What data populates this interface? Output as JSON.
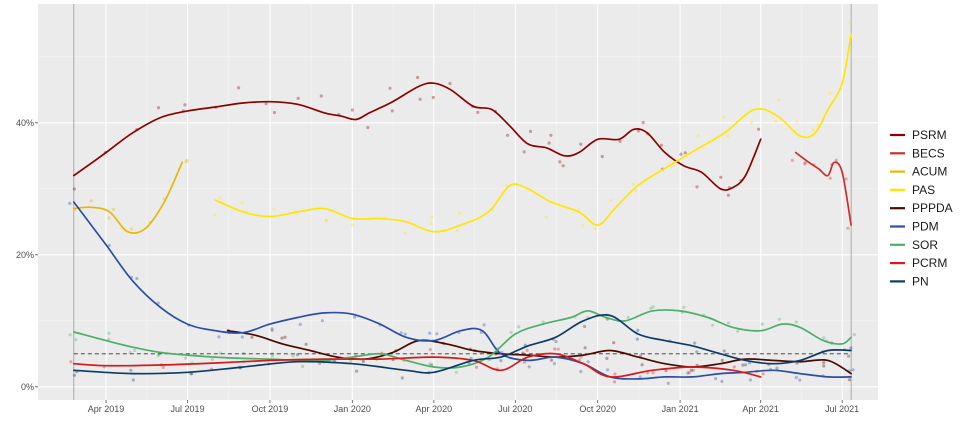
{
  "chart_data": {
    "type": "line",
    "title": "",
    "xlabel": "",
    "ylabel": "",
    "ylim": [
      -2,
      58
    ],
    "x_range": [
      "2019-01-15",
      "2021-08-10"
    ],
    "y_ticks": [
      {
        "value": 0,
        "label": "0%"
      },
      {
        "value": 20,
        "label": "20%"
      },
      {
        "value": 40,
        "label": "40%"
      }
    ],
    "x_ticks": [
      {
        "date": "2019-04-01",
        "label": "Apr 2019"
      },
      {
        "date": "2019-07-01",
        "label": "Jul 2019"
      },
      {
        "date": "2019-10-01",
        "label": "Oct 2019"
      },
      {
        "date": "2020-01-01",
        "label": "Jan 2020"
      },
      {
        "date": "2020-04-01",
        "label": "Apr 2020"
      },
      {
        "date": "2020-07-01",
        "label": "Jul 2020"
      },
      {
        "date": "2020-10-01",
        "label": "Oct 2020"
      },
      {
        "date": "2021-01-01",
        "label": "Jan 2021"
      },
      {
        "date": "2021-04-01",
        "label": "Apr 2021"
      },
      {
        "date": "2021-07-01",
        "label": "Jul 2021"
      }
    ],
    "election_markers": [
      "2019-02-24",
      "2021-07-11"
    ],
    "threshold": 5,
    "legend_position": "right",
    "series": [
      {
        "name": "PSRM",
        "color": "#8b0000",
        "segments": [
          [
            [
              "2019-02-24",
              32
            ],
            [
              "2019-04-01",
              35.5
            ],
            [
              "2019-05-01",
              38.5
            ],
            [
              "2019-06-01",
              40.8
            ],
            [
              "2019-07-01",
              41.8
            ],
            [
              "2019-08-01",
              42.4
            ],
            [
              "2019-09-01",
              43
            ],
            [
              "2019-10-01",
              43.2
            ],
            [
              "2019-11-01",
              42.8
            ],
            [
              "2019-12-01",
              41.5
            ],
            [
              "2019-12-20",
              41
            ],
            [
              "2020-01-05",
              40.5
            ],
            [
              "2020-01-20",
              41.5
            ],
            [
              "2020-02-15",
              43.2
            ],
            [
              "2020-03-15",
              45.5
            ],
            [
              "2020-04-01",
              46
            ],
            [
              "2020-04-20",
              45
            ],
            [
              "2020-05-15",
              42.5
            ],
            [
              "2020-06-05",
              42
            ],
            [
              "2020-06-25",
              39.5
            ],
            [
              "2020-07-15",
              36.8
            ],
            [
              "2020-08-05",
              36.2
            ],
            [
              "2020-08-25",
              35
            ],
            [
              "2020-09-10",
              35.5
            ],
            [
              "2020-10-01",
              37.5
            ],
            [
              "2020-10-25",
              37.5
            ],
            [
              "2020-11-10",
              39
            ],
            [
              "2020-11-25",
              38.5
            ],
            [
              "2020-12-15",
              35.5
            ],
            [
              "2021-01-05",
              33.5
            ],
            [
              "2021-01-25",
              32.5
            ],
            [
              "2021-02-15",
              30
            ],
            [
              "2021-03-01",
              30.2
            ],
            [
              "2021-03-15",
              32
            ],
            [
              "2021-04-01",
              37.5
            ]
          ]
        ]
      },
      {
        "name": "BECS",
        "color": "#cc2d2d",
        "segments": [
          [
            [
              "2021-05-10",
              35.5
            ],
            [
              "2021-05-25",
              34
            ],
            [
              "2021-06-05",
              33
            ],
            [
              "2021-06-15",
              32
            ],
            [
              "2021-06-22",
              34
            ],
            [
              "2021-07-01",
              32.5
            ],
            [
              "2021-07-11",
              24.5
            ]
          ]
        ]
      },
      {
        "name": "ACUM",
        "color": "#e6b800",
        "segments": [
          [
            [
              "2019-02-24",
              27
            ],
            [
              "2019-03-15",
              27.2
            ],
            [
              "2019-04-05",
              26.5
            ],
            [
              "2019-04-25",
              23.5
            ],
            [
              "2019-05-15",
              24
            ],
            [
              "2019-06-05",
              28
            ],
            [
              "2019-06-25",
              34
            ]
          ]
        ]
      },
      {
        "name": "PAS",
        "color": "#ffe600",
        "segments": [
          [
            [
              "2019-08-01",
              28.3
            ],
            [
              "2019-09-01",
              26.5
            ],
            [
              "2019-10-01",
              25.8
            ],
            [
              "2019-11-01",
              26.5
            ],
            [
              "2019-12-01",
              27
            ],
            [
              "2020-01-01",
              25.5
            ],
            [
              "2020-02-01",
              25.5
            ],
            [
              "2020-03-01",
              25
            ],
            [
              "2020-04-01",
              23.5
            ],
            [
              "2020-05-01",
              24.5
            ],
            [
              "2020-06-01",
              26.5
            ],
            [
              "2020-06-25",
              30.5
            ],
            [
              "2020-07-15",
              30
            ],
            [
              "2020-08-10",
              28
            ],
            [
              "2020-09-10",
              26.5
            ],
            [
              "2020-10-01",
              24.5
            ],
            [
              "2020-10-20",
              27
            ],
            [
              "2020-11-15",
              30.5
            ],
            [
              "2020-12-20",
              33.5
            ],
            [
              "2021-01-20",
              36
            ],
            [
              "2021-02-20",
              38.5
            ],
            [
              "2021-03-25",
              42
            ],
            [
              "2021-04-20",
              41
            ],
            [
              "2021-05-15",
              38
            ],
            [
              "2021-06-01",
              38.5
            ],
            [
              "2021-06-15",
              42
            ],
            [
              "2021-07-01",
              46
            ],
            [
              "2021-07-11",
              53.5
            ]
          ]
        ]
      },
      {
        "name": "PPPDA",
        "color": "#4a0a00",
        "segments": [
          [
            [
              "2019-08-15",
              8.5
            ],
            [
              "2019-09-15",
              7.8
            ],
            [
              "2019-10-15",
              6.5
            ],
            [
              "2019-11-15",
              5.5
            ],
            [
              "2019-12-15",
              4.5
            ],
            [
              "2020-01-15",
              4.2
            ],
            [
              "2020-02-15",
              5.2
            ],
            [
              "2020-03-15",
              7
            ],
            [
              "2020-04-15",
              6.5
            ],
            [
              "2020-05-15",
              5.5
            ],
            [
              "2020-06-15",
              5
            ],
            [
              "2020-07-15",
              4.8
            ],
            [
              "2020-08-15",
              4.5
            ],
            [
              "2020-09-15",
              4.8
            ],
            [
              "2020-10-15",
              5.5
            ],
            [
              "2020-11-15",
              4.5
            ],
            [
              "2020-12-15",
              3.5
            ],
            [
              "2021-01-15",
              3
            ],
            [
              "2021-02-15",
              3.5
            ],
            [
              "2021-03-15",
              4.2
            ],
            [
              "2021-04-15",
              4
            ],
            [
              "2021-05-15",
              3.8
            ],
            [
              "2021-06-15",
              4
            ],
            [
              "2021-07-11",
              2
            ]
          ]
        ]
      },
      {
        "name": "PDM",
        "color": "#2c4ea3",
        "segments": [
          [
            [
              "2019-02-24",
              28
            ],
            [
              "2019-04-01",
              21.5
            ],
            [
              "2019-05-01",
              16
            ],
            [
              "2019-06-01",
              12
            ],
            [
              "2019-07-01",
              9.5
            ],
            [
              "2019-08-01",
              8.5
            ],
            [
              "2019-09-01",
              8.2
            ],
            [
              "2019-10-01",
              9.5
            ],
            [
              "2019-11-01",
              10.5
            ],
            [
              "2019-12-01",
              11.2
            ],
            [
              "2020-01-01",
              11
            ],
            [
              "2020-02-01",
              9.5
            ],
            [
              "2020-03-01",
              7.5
            ],
            [
              "2020-04-01",
              7
            ],
            [
              "2020-05-01",
              8.5
            ],
            [
              "2020-05-25",
              8.5
            ],
            [
              "2020-06-15",
              5
            ],
            [
              "2020-07-15",
              4
            ],
            [
              "2020-08-15",
              4.5
            ],
            [
              "2020-09-15",
              3.5
            ],
            [
              "2020-10-15",
              1.5
            ],
            [
              "2020-11-15",
              1.2
            ],
            [
              "2020-12-15",
              1.5
            ],
            [
              "2021-01-15",
              1.5
            ],
            [
              "2021-02-15",
              2
            ],
            [
              "2021-03-15",
              2.2
            ],
            [
              "2021-04-15",
              2.5
            ],
            [
              "2021-05-15",
              2
            ],
            [
              "2021-06-15",
              1.5
            ],
            [
              "2021-07-11",
              1.5
            ]
          ]
        ]
      },
      {
        "name": "SOR",
        "color": "#4caf6a",
        "segments": [
          [
            [
              "2019-02-24",
              8.3
            ],
            [
              "2019-04-01",
              7
            ],
            [
              "2019-05-01",
              6
            ],
            [
              "2019-06-01",
              5.2
            ],
            [
              "2019-07-01",
              4.8
            ],
            [
              "2019-08-01",
              4.5
            ],
            [
              "2019-09-01",
              4.3
            ],
            [
              "2019-10-01",
              4.2
            ],
            [
              "2019-11-01",
              4
            ],
            [
              "2019-12-01",
              4
            ],
            [
              "2020-01-01",
              4.5
            ],
            [
              "2020-02-01",
              5
            ],
            [
              "2020-03-01",
              4
            ],
            [
              "2020-04-01",
              3
            ],
            [
              "2020-05-01",
              3
            ],
            [
              "2020-06-01",
              4.5
            ],
            [
              "2020-07-01",
              8
            ],
            [
              "2020-08-01",
              9.5
            ],
            [
              "2020-09-01",
              10.5
            ],
            [
              "2020-09-20",
              11.5
            ],
            [
              "2020-10-10",
              10.5
            ],
            [
              "2020-11-01",
              10
            ],
            [
              "2020-12-01",
              11.5
            ],
            [
              "2021-01-01",
              11.5
            ],
            [
              "2021-02-01",
              10.5
            ],
            [
              "2021-03-01",
              9
            ],
            [
              "2021-04-01",
              8.5
            ],
            [
              "2021-04-25",
              9.5
            ],
            [
              "2021-05-15",
              9
            ],
            [
              "2021-06-10",
              7
            ],
            [
              "2021-07-01",
              6.5
            ],
            [
              "2021-07-11",
              7.5
            ]
          ]
        ]
      },
      {
        "name": "PCRM",
        "color": "#d7191c",
        "segments": [
          [
            [
              "2019-02-24",
              3.5
            ],
            [
              "2019-04-01",
              3.2
            ],
            [
              "2019-06-01",
              3.3
            ],
            [
              "2019-08-01",
              3.6
            ],
            [
              "2019-10-01",
              4
            ],
            [
              "2019-12-01",
              4.2
            ],
            [
              "2020-02-01",
              4.2
            ],
            [
              "2020-04-01",
              4.5
            ],
            [
              "2020-05-15",
              4
            ],
            [
              "2020-06-15",
              2.5
            ],
            [
              "2020-07-15",
              4.5
            ],
            [
              "2020-08-15",
              5
            ],
            [
              "2020-09-15",
              3.5
            ],
            [
              "2020-10-15",
              1.5
            ],
            [
              "2020-12-01",
              2.5
            ],
            [
              "2021-01-15",
              3
            ],
            [
              "2021-03-01",
              2.5
            ],
            [
              "2021-04-01",
              1.5
            ]
          ]
        ]
      },
      {
        "name": "PN",
        "color": "#0d3b66",
        "segments": [
          [
            [
              "2019-02-24",
              2.5
            ],
            [
              "2019-05-01",
              2
            ],
            [
              "2019-07-01",
              2.2
            ],
            [
              "2019-09-01",
              3
            ],
            [
              "2019-11-01",
              3.8
            ],
            [
              "2020-01-01",
              3.5
            ],
            [
              "2020-03-01",
              2.5
            ],
            [
              "2020-04-01",
              2.2
            ],
            [
              "2020-05-15",
              4
            ],
            [
              "2020-06-15",
              4.5
            ],
            [
              "2020-07-15",
              6.2
            ],
            [
              "2020-08-15",
              7.5
            ],
            [
              "2020-09-15",
              10
            ],
            [
              "2020-10-15",
              10.8
            ],
            [
              "2020-11-15",
              8
            ],
            [
              "2020-12-15",
              7
            ],
            [
              "2021-01-15",
              6.2
            ],
            [
              "2021-02-15",
              5
            ],
            [
              "2021-03-15",
              4
            ],
            [
              "2021-04-15",
              3.5
            ],
            [
              "2021-05-15",
              4
            ],
            [
              "2021-06-15",
              5.5
            ],
            [
              "2021-07-11",
              5.5
            ]
          ]
        ]
      }
    ]
  }
}
